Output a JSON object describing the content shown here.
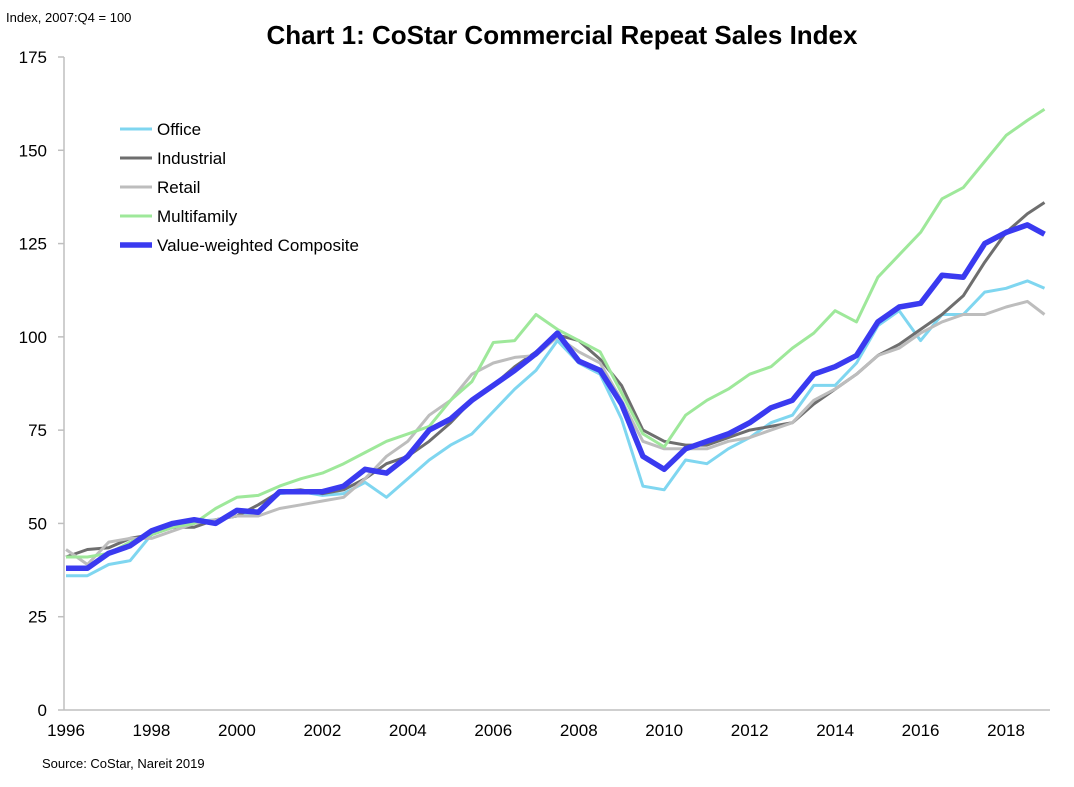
{
  "chart_data": {
    "type": "line",
    "title": "Chart 1: CoStar Commercial Repeat Sales Index",
    "ylabel": "Index, 2007:Q4 = 100",
    "xlabel": "",
    "source": "Source: CoStar, Nareit 2019",
    "ylim": [
      0,
      175
    ],
    "yticks": [
      0,
      25,
      50,
      75,
      100,
      125,
      150,
      175
    ],
    "xlim": [
      1996,
      2018.9
    ],
    "xticks": [
      1996,
      1998,
      2000,
      2002,
      2004,
      2006,
      2008,
      2010,
      2012,
      2014,
      2016,
      2018
    ],
    "grid": false,
    "legend_position": "top-left",
    "x": [
      1996,
      1996.5,
      1997,
      1997.5,
      1998,
      1998.5,
      1999,
      1999.5,
      2000,
      2000.5,
      2001,
      2001.5,
      2002,
      2002.5,
      2003,
      2003.5,
      2004,
      2004.5,
      2005,
      2005.5,
      2006,
      2006.5,
      2007,
      2007.5,
      2008,
      2008.5,
      2009,
      2009.5,
      2010,
      2010.5,
      2011,
      2011.5,
      2012,
      2012.5,
      2013,
      2013.5,
      2014,
      2014.5,
      2015,
      2015.5,
      2016,
      2016.5,
      2017,
      2017.5,
      2018,
      2018.5,
      2018.9
    ],
    "series": [
      {
        "name": "Office",
        "color": "#7fd6f0",
        "width": 3,
        "values": [
          36,
          36,
          39,
          40,
          47,
          50,
          50.5,
          51,
          52,
          53,
          58,
          58.5,
          57.5,
          58,
          61,
          57,
          62,
          67,
          71,
          74,
          80,
          86,
          91,
          99,
          93,
          90,
          78,
          60,
          59,
          67,
          66,
          70,
          73,
          77,
          79,
          87,
          87,
          93,
          103,
          107,
          99,
          106,
          106,
          112,
          113,
          115,
          113
        ]
      },
      {
        "name": "Industrial",
        "color": "#6e6e6e",
        "width": 3,
        "values": [
          41,
          43,
          43.5,
          46,
          47,
          49,
          49,
          51,
          52,
          55,
          58.5,
          59,
          58,
          59,
          62,
          66,
          68,
          72,
          77,
          83,
          87,
          92,
          96,
          100.5,
          99,
          94,
          87,
          75,
          72,
          71,
          71,
          73,
          75,
          76,
          77,
          82,
          86,
          90,
          95,
          98,
          102,
          106,
          111,
          120,
          128,
          133,
          136
        ]
      },
      {
        "name": "Retail",
        "color": "#bdbdbd",
        "width": 3,
        "values": [
          43,
          39,
          45,
          46,
          46,
          48,
          50,
          51,
          52,
          52,
          54,
          55,
          56,
          57,
          62,
          68,
          72,
          79,
          83,
          90,
          93,
          94.5,
          95,
          100,
          96,
          93,
          83,
          72,
          70,
          70,
          70,
          72,
          73,
          75,
          77,
          83,
          86,
          90,
          95,
          97,
          101,
          104,
          106,
          106,
          108,
          109.5,
          106
        ]
      },
      {
        "name": "Multifamily",
        "color": "#9ee89a",
        "width": 3,
        "values": [
          41,
          41,
          42,
          45,
          47,
          49,
          50,
          54,
          57,
          57.5,
          60,
          62,
          63.5,
          66,
          69,
          72,
          74,
          76,
          83,
          88,
          98.5,
          99,
          106,
          102,
          99,
          96,
          85,
          74,
          70.5,
          79,
          83,
          86,
          90,
          92,
          97,
          101,
          107,
          104,
          116,
          122,
          128,
          137,
          140,
          147,
          154,
          158,
          161
        ]
      },
      {
        "name": "Value-weighted Composite",
        "color": "#3a3af0",
        "width": 5.5,
        "values": [
          38,
          38,
          42,
          44,
          48,
          50,
          51,
          50,
          53.5,
          53,
          58.5,
          58.5,
          58.5,
          60,
          64.5,
          63.5,
          68,
          75,
          78,
          83,
          87,
          91,
          95.5,
          101,
          93.5,
          91,
          82,
          68,
          64.5,
          70,
          72,
          74,
          77,
          81,
          83,
          90,
          92,
          95,
          104,
          108,
          109,
          116.5,
          116,
          125,
          128,
          130,
          127.5
        ]
      }
    ]
  }
}
